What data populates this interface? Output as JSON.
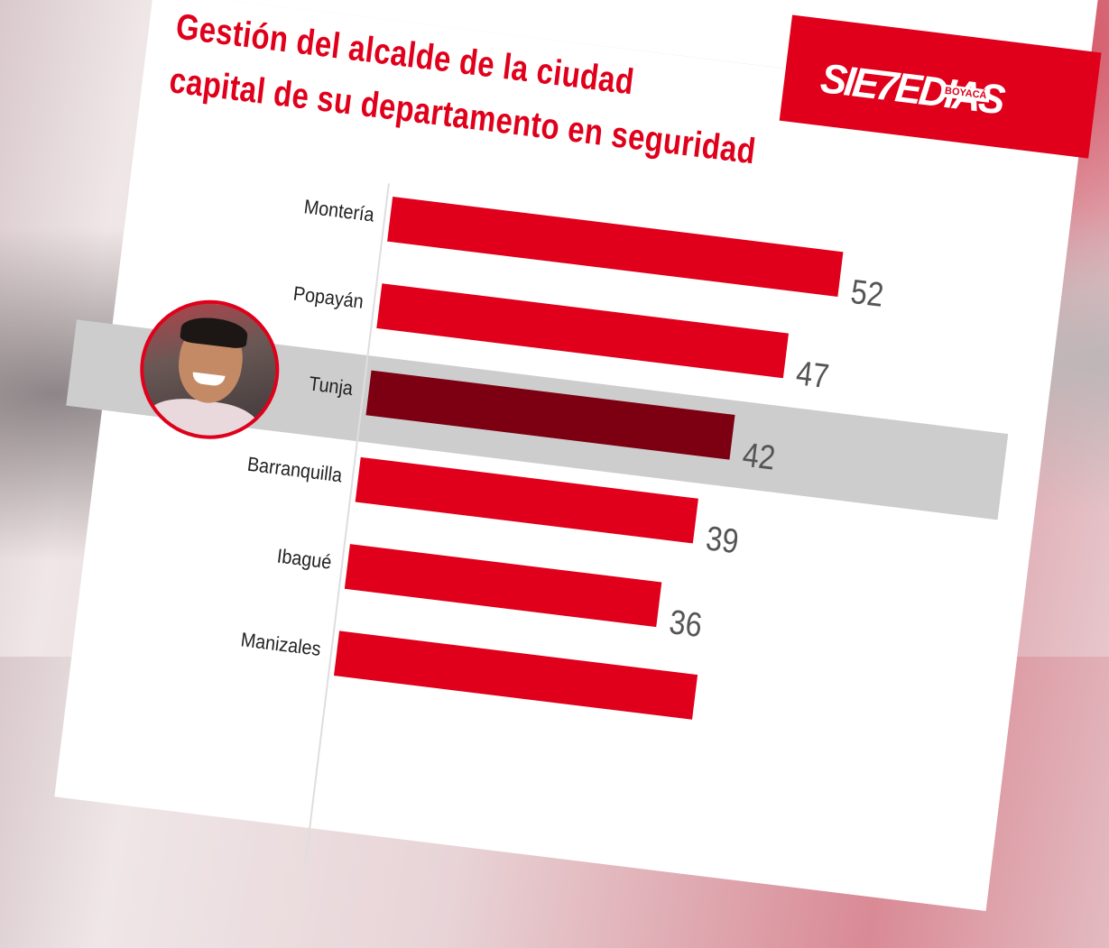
{
  "logo": {
    "text": "SIE7EDIAS",
    "subtext": "BOYACÁ"
  },
  "chart_data": {
    "type": "bar",
    "orientation": "horizontal",
    "title": [
      "Gestión del alcalde de la ciudad",
      "capital de su departamento en seguridad"
    ],
    "categories": [
      "Montería",
      "Popayán",
      "Tunja",
      "Barranquilla",
      "Ibagué",
      "Manizales"
    ],
    "values": [
      52,
      47,
      42,
      39,
      36,
      null
    ],
    "value_labels": [
      "52",
      "47",
      "42",
      "39",
      "36",
      ""
    ],
    "highlight": "Tunja",
    "colors": {
      "bar": "#e0001b",
      "highlight_bar": "#7d0012",
      "highlight_band": "#cdcdcd"
    },
    "xlabel": "",
    "ylabel": "",
    "grid": false
  }
}
